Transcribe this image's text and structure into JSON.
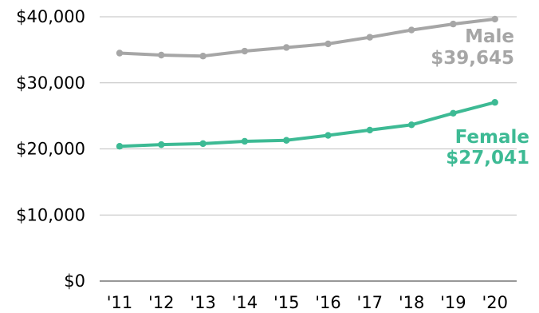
{
  "chart_data": {
    "type": "line",
    "x": [
      "'11",
      "'12",
      "'13",
      "'14",
      "'15",
      "'16",
      "'17",
      "'18",
      "'19",
      "'20"
    ],
    "ylim": [
      0,
      40000
    ],
    "y_ticks": [
      "$0",
      "$10,000",
      "$20,000",
      "$30,000",
      "$40,000"
    ],
    "y_tick_values": [
      0,
      10000,
      20000,
      30000,
      40000
    ],
    "grid": "horizontal",
    "series": [
      {
        "name": "Male",
        "values": [
          34500,
          34200,
          34050,
          34800,
          35350,
          35900,
          36900,
          38000,
          38900,
          39645
        ],
        "color": "#a6a6a6",
        "end_label": {
          "name": "Male",
          "value": "$39,645"
        }
      },
      {
        "name": "Female",
        "values": [
          20400,
          20650,
          20800,
          21150,
          21300,
          22050,
          22850,
          23650,
          25400,
          27041
        ],
        "color": "#3dba94",
        "end_label": {
          "name": "Female",
          "value": "$27,041"
        }
      }
    ]
  }
}
